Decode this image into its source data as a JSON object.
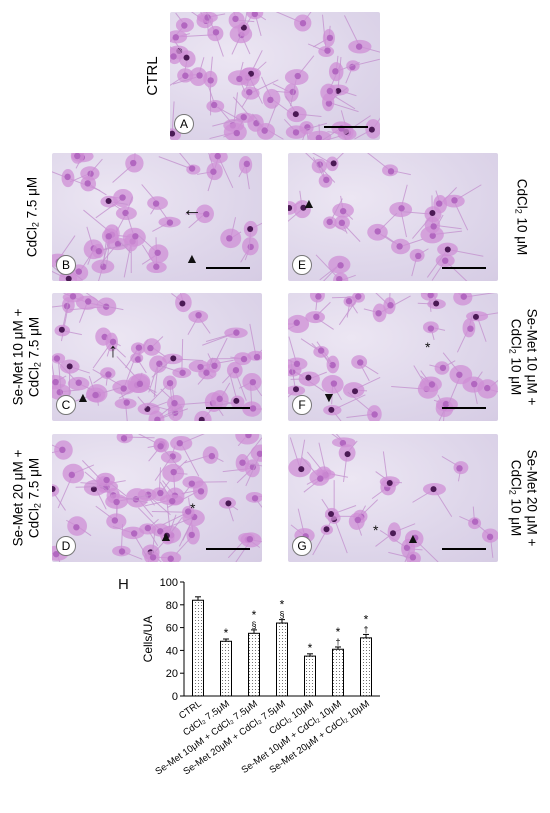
{
  "panels": [
    {
      "key": "A",
      "label": "A",
      "side_label": "CTRL"
    },
    {
      "key": "B",
      "label": "B",
      "side_label_main": "CdCl",
      "side_label_sub": "2",
      "side_label_rest": " 7.5 μM"
    },
    {
      "key": "E",
      "label": "E",
      "side_label_main": "CdCl",
      "side_label_sub": "2",
      "side_label_rest": " 10 μM"
    },
    {
      "key": "C",
      "label": "C",
      "side_line1": "Se-Met 10 μM +",
      "side_label_main": "CdCl",
      "side_label_sub": "2",
      "side_label_rest": " 7.5 μM"
    },
    {
      "key": "F",
      "label": "F",
      "side_line1": "Se-Met 10 μM +",
      "side_label_main": "CdCl",
      "side_label_sub": "2",
      "side_label_rest": " 10 μM"
    },
    {
      "key": "D",
      "label": "D",
      "side_line1": "Se-Met 20 μM +",
      "side_label_main": "CdCl",
      "side_label_sub": "2",
      "side_label_rest": " 7.5 μM"
    },
    {
      "key": "G",
      "label": "G",
      "side_line1": "Se-Met 20 μM +",
      "side_label_main": "CdCl",
      "side_label_sub": "2",
      "side_label_rest": " 10 μM"
    }
  ],
  "chart_panel_label": "H",
  "chart_data": {
    "type": "bar",
    "categories": [
      "CTRL",
      "CdCl₂ 7.5μM",
      "Se-Met 10μM + CdCl₂ 7.5μM",
      "Se-Met 20μM + CdCl₂ 7.5μM",
      "CdCl₂ 10μM",
      "Se-Met 10μM + CdCl₂ 10μM",
      "Se-Met 20μM + CdCl₂ 10μM"
    ],
    "values": [
      84,
      48,
      55,
      64,
      35,
      41,
      51
    ],
    "errors": [
      3,
      2,
      3,
      3,
      2,
      2,
      3
    ],
    "significance": [
      "",
      "*",
      "*\n§",
      "*\n§",
      "*",
      "*\n†",
      "*\n†"
    ],
    "ylabel": "Cells/UA",
    "xlabel": "",
    "ylim": [
      0,
      100
    ],
    "yticks": [
      0,
      20,
      40,
      60,
      80,
      100
    ],
    "bar_fill": "dotted",
    "grid": false
  }
}
